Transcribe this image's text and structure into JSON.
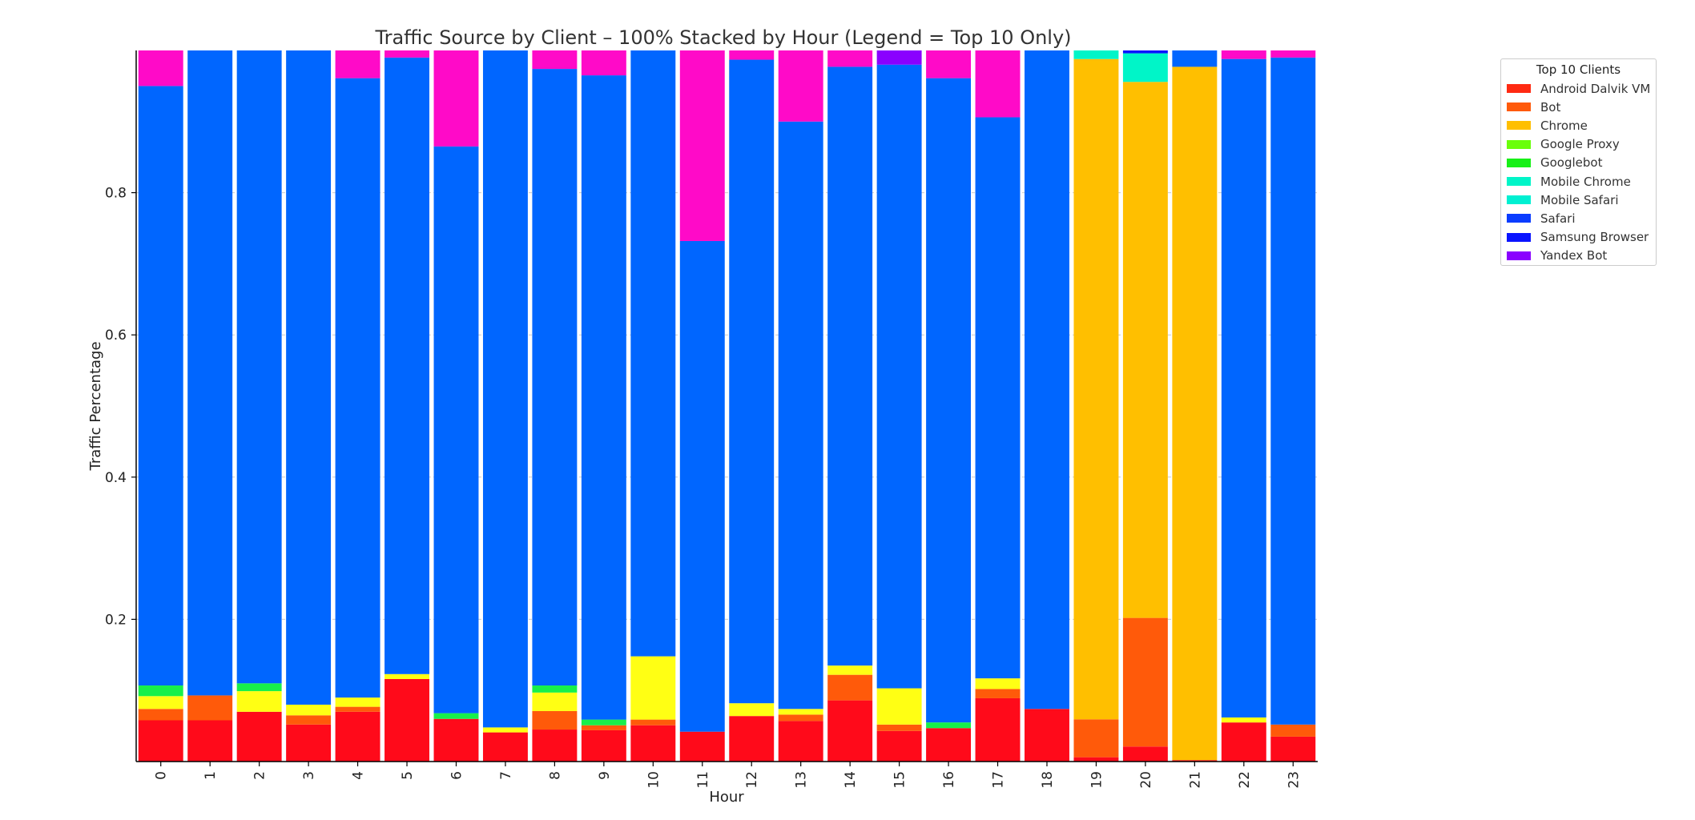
{
  "chart_data": {
    "type": "bar",
    "stacked": true,
    "normalized": true,
    "title": "Traffic Source by Client – 100% Stacked by Hour (Legend = Top 10 Only)",
    "xlabel": "Hour",
    "ylabel": "Traffic Percentage",
    "ylim": [
      0,
      1
    ],
    "yticks": [
      0.2,
      0.4,
      0.6,
      0.8
    ],
    "ytick_labels": [
      "0.2",
      "0.4",
      "0.6",
      "0.8"
    ],
    "grid": true,
    "categories": [
      "0",
      "1",
      "2",
      "3",
      "4",
      "5",
      "6",
      "7",
      "8",
      "9",
      "10",
      "11",
      "12",
      "13",
      "14",
      "15",
      "16",
      "17",
      "18",
      "19",
      "20",
      "21",
      "22",
      "23"
    ],
    "series": [
      {
        "name": "Android Dalvik VM",
        "color": "#ff0a1a",
        "values": [
          0.058,
          0.058,
          0.07,
          0.052,
          0.07,
          0.116,
          0.06,
          0.041,
          0.045,
          0.044,
          0.051,
          0.042,
          0.064,
          0.057,
          0.086,
          0.043,
          0.047,
          0.089,
          0.074,
          0.006,
          0.021,
          0.002,
          0.055,
          0.035
        ]
      },
      {
        "name": "Bot",
        "color": "#ff5a0a",
        "values": [
          0.016,
          0.035,
          0,
          0.013,
          0.007,
          0,
          0,
          0,
          0.026,
          0.007,
          0.008,
          0,
          0,
          0.009,
          0.036,
          0.009,
          0,
          0.013,
          0,
          0.053,
          0.18,
          0,
          0,
          0.017
        ]
      },
      {
        "name": "Google Proxy",
        "color": "#ffff14",
        "values": [
          0.018,
          0,
          0.029,
          0.015,
          0.013,
          0.007,
          0,
          0.007,
          0.026,
          0,
          0.089,
          0,
          0.018,
          0.008,
          0.013,
          0.051,
          0,
          0.015,
          0,
          0,
          0,
          0,
          0.007,
          0
        ]
      },
      {
        "name": "Googlebot",
        "color": "#17f04a",
        "values": [
          0.015,
          0,
          0.011,
          0,
          0,
          0,
          0.008,
          0,
          0.01,
          0.008,
          0,
          0,
          0,
          0,
          0,
          0,
          0.008,
          0,
          0,
          0,
          0,
          0,
          0,
          0
        ]
      },
      {
        "name": "Chrome",
        "color": "#ffbf00",
        "values": [
          0,
          0,
          0,
          0,
          0,
          0,
          0,
          0,
          0,
          0,
          0,
          0,
          0,
          0,
          0,
          0,
          0,
          0,
          0,
          0.923,
          0.75,
          0.975,
          0,
          0
        ]
      },
      {
        "name": "Mobile Chrome",
        "color": "#00f5c8",
        "values": [
          0,
          0,
          0,
          0,
          0,
          0,
          0,
          0,
          0,
          0,
          0,
          0,
          0,
          0,
          0,
          0,
          0,
          0,
          0,
          0.012,
          0.04,
          0,
          0,
          0
        ]
      },
      {
        "name": "Safari",
        "color": "#0066ff",
        "values": [
          0.843,
          0.907,
          0.89,
          0.92,
          0.871,
          0.867,
          0.797,
          0.952,
          0.867,
          0.906,
          0.852,
          0.69,
          0.905,
          0.826,
          0.842,
          0.877,
          0.906,
          0.789,
          0.926,
          0,
          0,
          0.023,
          0.926,
          0.938
        ]
      },
      {
        "name": "Samsung Browser",
        "color": "#0a14ff",
        "values": [
          0,
          0,
          0,
          0,
          0,
          0,
          0,
          0,
          0,
          0,
          0,
          0,
          0,
          0,
          0,
          0,
          0,
          0,
          0,
          0,
          0.004,
          0,
          0,
          0
        ]
      },
      {
        "name": "Yandex Bot",
        "color": "#8a00ff",
        "values": [
          0,
          0,
          0,
          0,
          0,
          0,
          0,
          0,
          0,
          0,
          0,
          0,
          0,
          0,
          0,
          0.02,
          0,
          0,
          0,
          0,
          0,
          0,
          0,
          0
        ]
      },
      {
        "name": "",
        "color": "#ff0ac8",
        "values": [
          0.05,
          0,
          0,
          0,
          0.039,
          0.01,
          0.135,
          0,
          0.026,
          0.035,
          0,
          0.268,
          0.013,
          0.1,
          0.023,
          0,
          0.039,
          0.094,
          0,
          0,
          0,
          0,
          0.012,
          0.01
        ]
      }
    ]
  },
  "legend": {
    "title": "Top 10 Clients",
    "items": [
      {
        "label": "Android Dalvik VM",
        "color": "#ff2a12"
      },
      {
        "label": "Bot",
        "color": "#ff5a0a"
      },
      {
        "label": "Chrome",
        "color": "#ffbf00"
      },
      {
        "label": "Google Proxy",
        "color": "#6aff0a"
      },
      {
        "label": "Googlebot",
        "color": "#17f017"
      },
      {
        "label": "Mobile Chrome",
        "color": "#00f5c8"
      },
      {
        "label": "Mobile Safari",
        "color": "#00f0d2"
      },
      {
        "label": "Safari",
        "color": "#0a3cff"
      },
      {
        "label": "Samsung Browser",
        "color": "#0a14ff"
      },
      {
        "label": "Yandex Bot",
        "color": "#8a00ff"
      }
    ]
  }
}
